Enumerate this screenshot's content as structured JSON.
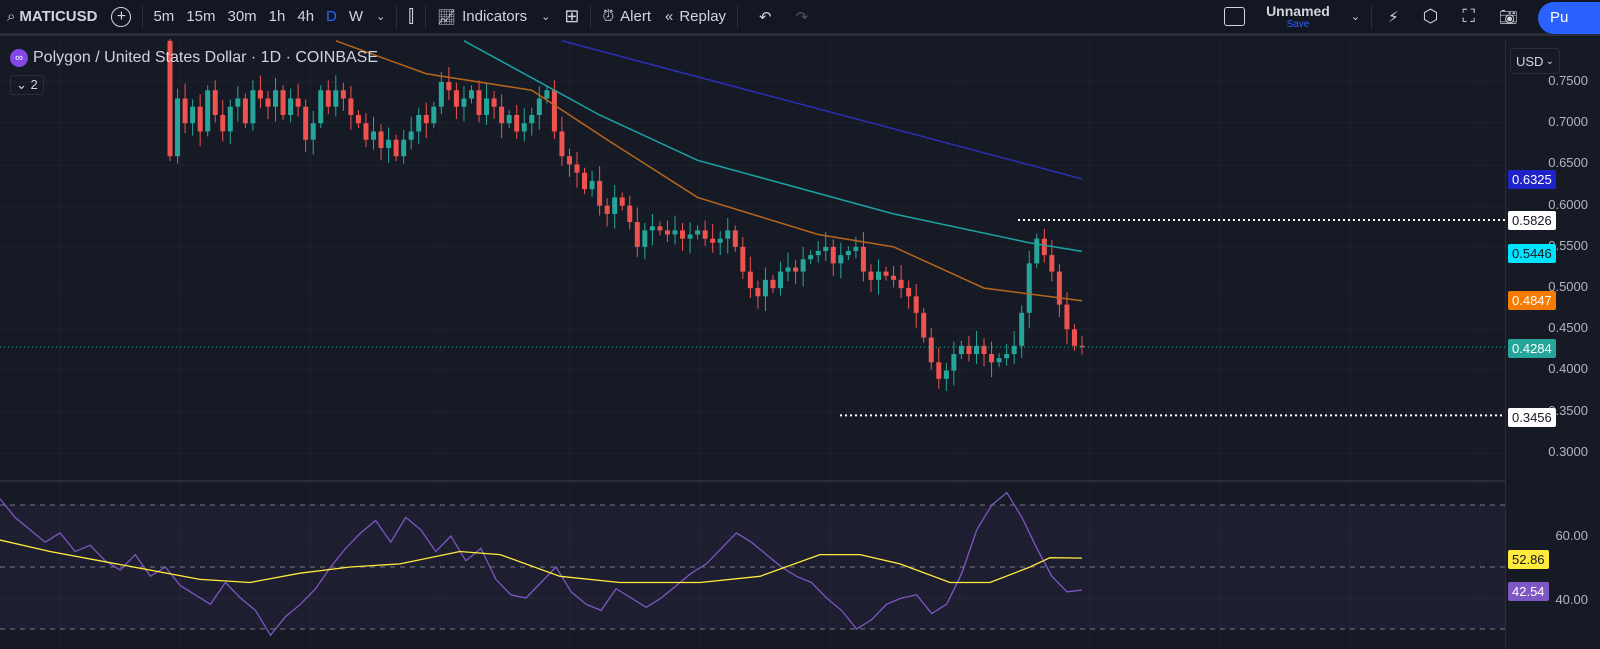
{
  "toolbar": {
    "symbol": "MATICUSD",
    "timeframes": [
      "5m",
      "15m",
      "30m",
      "1h",
      "4h",
      "D",
      "W"
    ],
    "active_timeframe": "D",
    "indicators": "Indicators",
    "alert": "Alert",
    "replay": "Replay",
    "layout_name": "Unnamed",
    "save": "Save",
    "publish": "Pu"
  },
  "legend": {
    "title": "Polygon / United States Dollar · 1D · COINBASE",
    "logo_glyph": "∞",
    "collapse": "2"
  },
  "axis": {
    "currency": "USD",
    "ticks": [
      "0.7500",
      "0.7000",
      "0.6500",
      "0.6000",
      "0.5500",
      "0.5000",
      "0.4500",
      "0.4000",
      "0.3500",
      "0.3000"
    ],
    "rsi_ticks": [
      "60.00",
      "40.00"
    ]
  },
  "price_labels": {
    "ma_blue": "0.6325",
    "high_line": "0.5826",
    "ma_teal": "0.5446",
    "ma_orange": "0.4847",
    "last": "0.4284",
    "low_line": "0.3456",
    "rsi_ma": "52.86",
    "rsi": "42.54"
  },
  "colors": {
    "up": "#26a69a",
    "down": "#ef5350",
    "ma_orange": "#f57c00",
    "ma_teal": "#00bcd4",
    "ma_blue": "#2962ff",
    "rsi": "#7e57c2",
    "rsi_ma": "#ffeb3b",
    "accent": "#2962ff"
  },
  "chart_data": {
    "type": "candlestick",
    "closes": [
      0.66,
      0.73,
      0.7,
      0.72,
      0.69,
      0.74,
      0.71,
      0.69,
      0.72,
      0.73,
      0.7,
      0.74,
      0.73,
      0.72,
      0.74,
      0.71,
      0.73,
      0.72,
      0.68,
      0.7,
      0.74,
      0.72,
      0.74,
      0.73,
      0.71,
      0.7,
      0.68,
      0.69,
      0.67,
      0.68,
      0.66,
      0.68,
      0.69,
      0.71,
      0.7,
      0.72,
      0.75,
      0.74,
      0.72,
      0.73,
      0.74,
      0.71,
      0.73,
      0.72,
      0.7,
      0.71,
      0.69,
      0.7,
      0.71,
      0.73,
      0.74,
      0.69,
      0.66,
      0.65,
      0.64,
      0.62,
      0.63,
      0.6,
      0.59,
      0.61,
      0.6,
      0.58,
      0.55,
      0.57,
      0.575,
      0.57,
      0.565,
      0.57,
      0.56,
      0.565,
      0.57,
      0.56,
      0.555,
      0.56,
      0.57,
      0.55,
      0.52,
      0.5,
      0.49,
      0.51,
      0.5,
      0.52,
      0.525,
      0.52,
      0.535,
      0.54,
      0.545,
      0.55,
      0.53,
      0.54,
      0.545,
      0.55,
      0.52,
      0.51,
      0.52,
      0.515,
      0.51,
      0.5,
      0.49,
      0.47,
      0.44,
      0.41,
      0.39,
      0.4,
      0.42,
      0.43,
      0.42,
      0.43,
      0.42,
      0.41,
      0.415,
      0.42,
      0.43,
      0.47,
      0.53,
      0.56,
      0.54,
      0.52,
      0.48,
      0.45,
      0.43,
      0.4284
    ],
    "first_open": 0.8,
    "ma_orange": [
      [
        22,
        0.8
      ],
      [
        34,
        0.76
      ],
      [
        48,
        0.74
      ],
      [
        58,
        0.68
      ],
      [
        70,
        0.61
      ],
      [
        86,
        0.565
      ],
      [
        96,
        0.55
      ],
      [
        108,
        0.5
      ],
      [
        121,
        0.4847
      ]
    ],
    "ma_teal": [
      [
        39,
        0.8
      ],
      [
        57,
        0.71
      ],
      [
        70,
        0.655
      ],
      [
        96,
        0.59
      ],
      [
        114,
        0.555
      ],
      [
        121,
        0.5446
      ]
    ],
    "ma_blue": [
      [
        52,
        0.8
      ],
      [
        121,
        0.6325
      ]
    ],
    "high_line": 0.5826,
    "low_line": 0.3456,
    "last": 0.4284,
    "ylim": [
      0.28,
      0.8
    ],
    "rsi": [
      72,
      66,
      62,
      58,
      61,
      55,
      57,
      52,
      49,
      54,
      47,
      50,
      44,
      41,
      38,
      45,
      40,
      36,
      28,
      34,
      38,
      43,
      50,
      56,
      61,
      65,
      58,
      66,
      62,
      55,
      60,
      52,
      56,
      46,
      41,
      40,
      45,
      50,
      42,
      38,
      36,
      43,
      40,
      37,
      40,
      44,
      48,
      51,
      56,
      61,
      58,
      54,
      50,
      47,
      45,
      40,
      36,
      30,
      33,
      38,
      40,
      41,
      35,
      38,
      48,
      62,
      70,
      74,
      66,
      56,
      47,
      42,
      42.54
    ],
    "rsi_ma": [
      [
        0,
        58.7
      ],
      [
        50,
        55
      ],
      [
        100,
        52
      ],
      [
        200,
        46
      ],
      [
        250,
        45
      ],
      [
        300,
        48
      ],
      [
        350,
        50
      ],
      [
        400,
        51
      ],
      [
        460,
        55
      ],
      [
        500,
        54
      ],
      [
        560,
        47
      ],
      [
        620,
        45
      ],
      [
        700,
        45
      ],
      [
        760,
        47
      ],
      [
        820,
        54
      ],
      [
        860,
        54
      ],
      [
        900,
        51
      ],
      [
        950,
        45
      ],
      [
        990,
        45
      ],
      [
        1030,
        50
      ],
      [
        1050,
        53
      ],
      [
        1082,
        52.86
      ]
    ],
    "rsi_levels": [
      70,
      50,
      30
    ]
  }
}
